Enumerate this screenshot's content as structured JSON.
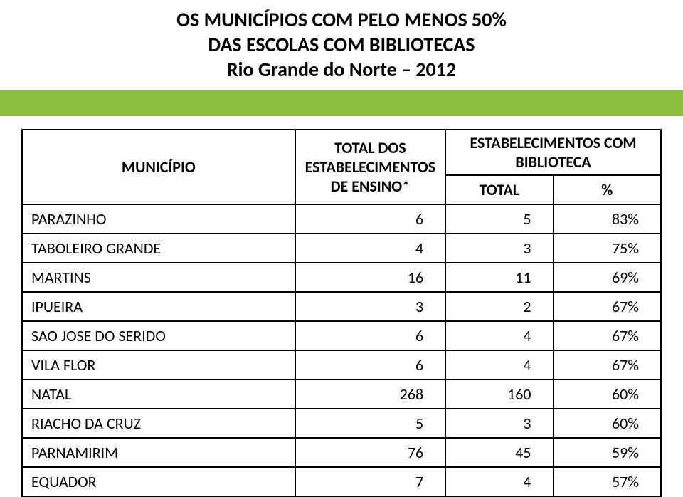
{
  "title": {
    "line1": "OS MUNICÍPIOS COM PELO MENOS 50%",
    "line2": "DAS ESCOLAS COM BIBLIOTECAS",
    "line3": "Rio Grande do Norte – 2012"
  },
  "green_band_color": "#8bbf3f",
  "table": {
    "headers": {
      "municipio": "MUNICÍPIO",
      "total_estab": "TOTAL DOS ESTABELECIMENTOS DE ENSINO*",
      "estab_com_bib": "ESTABELECIMENTOS COM BIBLIOTECA",
      "sub_total": "TOTAL",
      "sub_pct": "%"
    },
    "rows": [
      {
        "municipio": "PARAZINHO",
        "total": 6,
        "com_bib": 5,
        "pct": "83%"
      },
      {
        "municipio": "TABOLEIRO GRANDE",
        "total": 4,
        "com_bib": 3,
        "pct": "75%"
      },
      {
        "municipio": "MARTINS",
        "total": 16,
        "com_bib": 11,
        "pct": "69%"
      },
      {
        "municipio": "IPUEIRA",
        "total": 3,
        "com_bib": 2,
        "pct": "67%"
      },
      {
        "municipio": "SAO JOSE DO SERIDO",
        "total": 6,
        "com_bib": 4,
        "pct": "67%"
      },
      {
        "municipio": "VILA FLOR",
        "total": 6,
        "com_bib": 4,
        "pct": "67%"
      },
      {
        "municipio": "NATAL",
        "total": 268,
        "com_bib": 160,
        "pct": "60%"
      },
      {
        "municipio": "RIACHO DA CRUZ",
        "total": 5,
        "com_bib": 3,
        "pct": "60%"
      },
      {
        "municipio": "PARNAMIRIM",
        "total": 76,
        "com_bib": 45,
        "pct": "59%"
      },
      {
        "municipio": "EQUADOR",
        "total": 7,
        "com_bib": 4,
        "pct": "57%"
      }
    ]
  },
  "style": {
    "title_fontsize": 28,
    "title_weight": "bold",
    "title_color": "#000000",
    "table_border_color": "#000000",
    "table_border_width": 2,
    "cell_fontsize": 22,
    "background": "#ffffff"
  }
}
